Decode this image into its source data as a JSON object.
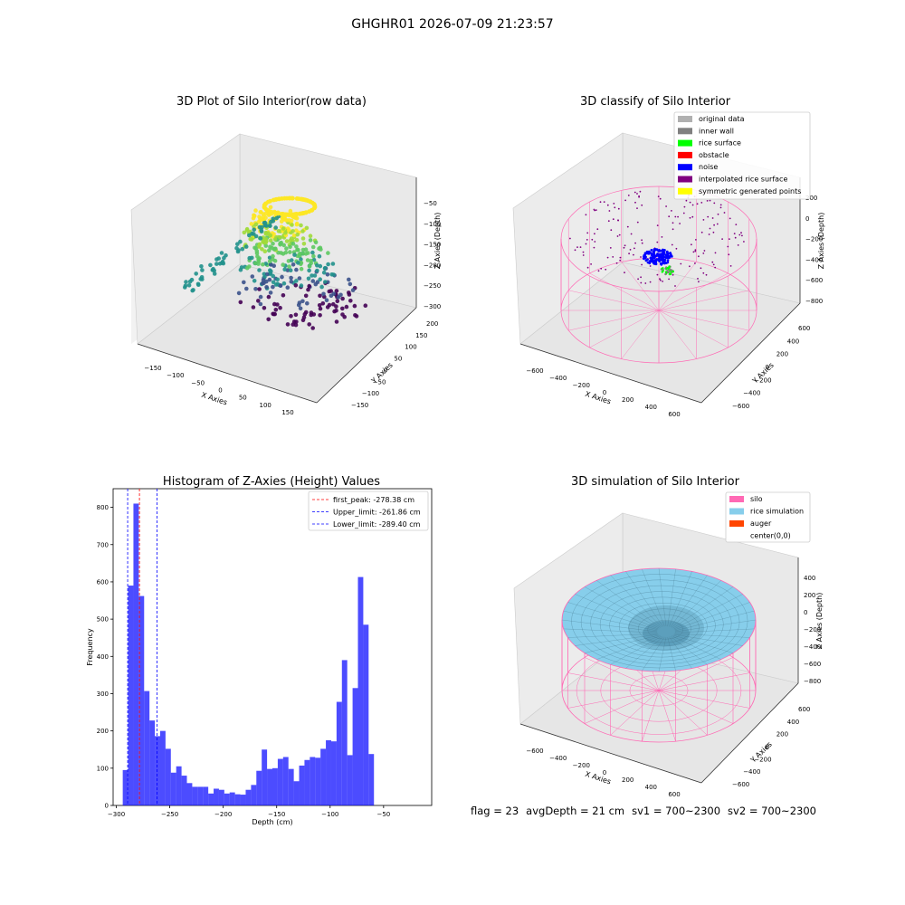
{
  "suptitle": "GHGHR01 2026-07-09 21:23:57",
  "panel_row": {
    "title": "3D Plot of Silo Interior(row data)",
    "xlabel": "X Axies",
    "ylabel": "Y Axies",
    "zlabel": "Z Axies (Depth)",
    "xticks": [
      "−150",
      "−100",
      "−50",
      "0",
      "50",
      "100",
      "150"
    ],
    "yticks": [
      "−150",
      "−100",
      "−50",
      "0",
      "50",
      "100",
      "150",
      "200"
    ],
    "zticks": [
      "−50",
      "−100",
      "−150",
      "−200",
      "−250",
      "−300"
    ]
  },
  "panel_classify": {
    "title": "3D classify of Silo Interior",
    "xlabel": "X Axies",
    "ylabel": "Y Axies",
    "zlabel": "Z Axies (Depth)",
    "xticks": [
      "−600",
      "−400",
      "−200",
      "0",
      "200",
      "400",
      "600"
    ],
    "yticks": [
      "−600",
      "−400",
      "−200",
      "0",
      "200",
      "400",
      "600"
    ],
    "zticks": [
      "200",
      "0",
      "−200",
      "−400",
      "−600",
      "−800"
    ],
    "legend": [
      {
        "label": "original data",
        "color": "#b0b0b0"
      },
      {
        "label": "inner wall",
        "color": "#808080"
      },
      {
        "label": "rice surface",
        "color": "#00ff00"
      },
      {
        "label": "obstacle",
        "color": "#ff0000"
      },
      {
        "label": "noise",
        "color": "#0000ff"
      },
      {
        "label": "interpolated rice surface",
        "color": "#800080"
      },
      {
        "label": "symmetric generated points",
        "color": "#ffff00"
      }
    ]
  },
  "panel_sim": {
    "title": "3D simulation of Silo Interior",
    "xlabel": "X Axies",
    "ylabel": "Y Axies",
    "zlabel": "Z Axies (Depth)",
    "xticks": [
      "−600",
      "−400",
      "−200",
      "0",
      "200",
      "400",
      "600"
    ],
    "yticks": [
      "−600",
      "−400",
      "−200",
      "0",
      "200",
      "400",
      "600"
    ],
    "zticks": [
      "400",
      "200",
      "0",
      "−200",
      "−400",
      "−600",
      "−800"
    ],
    "legend": [
      {
        "label": "silo",
        "color": "#ff69b4"
      },
      {
        "label": "rice simulation",
        "color": "#87ceeb"
      },
      {
        "label": "auger",
        "color": "#ff4500"
      },
      {
        "label": "center(0,0)",
        "color": "#ffffff"
      }
    ]
  },
  "footer": {
    "flag": "flag = 23",
    "avg": "avgDepth = 21 cm",
    "sv1": "sv1 = 700~2300",
    "sv2": "sv2 = 700~2300"
  },
  "chart_data": [
    {
      "type": "bar",
      "title": "Histogram of Z-Axies (Height) Values",
      "xlabel": "Depth (cm)",
      "ylabel": "Frequency",
      "xlim": [
        -303,
        -5
      ],
      "ylim": [
        0,
        850
      ],
      "xticks": [
        -300,
        -250,
        -200,
        -150,
        -100,
        -50
      ],
      "yticks": [
        0,
        100,
        200,
        300,
        400,
        500,
        600,
        700,
        800
      ],
      "bin_start": -294,
      "bin_width": 5,
      "values": [
        95,
        590,
        810,
        562,
        307,
        228,
        186,
        200,
        152,
        88,
        105,
        80,
        60,
        50,
        50,
        50,
        32,
        45,
        42,
        32,
        35,
        30,
        29,
        42,
        55,
        93,
        150,
        98,
        100,
        125,
        130,
        98,
        65,
        107,
        122,
        130,
        128,
        152,
        175,
        172,
        278,
        390,
        135,
        315,
        613,
        485,
        138
      ],
      "bar_color": "#0000ff",
      "vlines": [
        {
          "label": "first_peak: -278.38 cm",
          "x": -278.38,
          "color": "#ff0000"
        },
        {
          "label": "Upper_limit: -261.86 cm",
          "x": -261.86,
          "color": "#0000ff"
        },
        {
          "label": "Lower_limit: -289.40 cm",
          "x": -289.4,
          "color": "#0000ff"
        }
      ],
      "legend_position": "top-right"
    }
  ]
}
